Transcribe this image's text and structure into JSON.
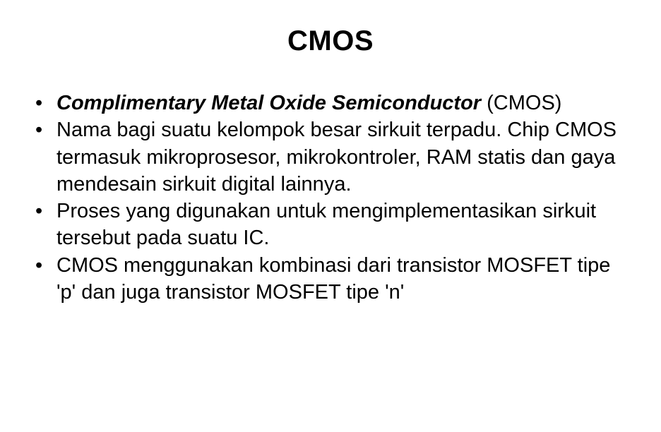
{
  "title": "CMOS",
  "bullets": [
    {
      "runs": [
        {
          "text": "Complimentary Metal Oxide Semiconductor",
          "style": "bi"
        },
        {
          "text": " (CMOS)",
          "style": "plain"
        }
      ]
    },
    {
      "runs": [
        {
          "text": "Nama bagi suatu kelompok besar sirkuit terpadu. Chip CMOS termasuk mikroprosesor, mikrokontroler, RAM statis dan gaya mendesain sirkuit digital lainnya.",
          "style": "plain"
        }
      ]
    },
    {
      "runs": [
        {
          "text": "Proses yang digunakan untuk mengimplementasikan sirkuit tersebut pada suatu IC.",
          "style": "plain"
        }
      ]
    },
    {
      "runs": [
        {
          "text": "CMOS menggunakan kombinasi dari transistor MOSFET tipe 'p' dan juga transistor MOSFET tipe 'n'",
          "style": "plain"
        }
      ]
    }
  ],
  "style": {
    "background_color": "#ffffff",
    "text_color": "#000000",
    "font_family": "Arial",
    "title_fontsize": 40,
    "title_fontweight": 700,
    "body_fontsize": 29,
    "line_height": 1.32,
    "bullet_glyph": "•",
    "emphasis": {
      "bi": {
        "bold": true,
        "italic": true
      }
    }
  }
}
